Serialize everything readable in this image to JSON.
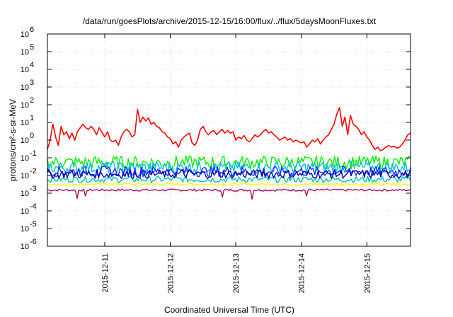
{
  "chart_data": {
    "type": "line",
    "title": "/data/run/goesPlots/archive/2015-12-15/16:00/flux/../flux/5daysMoonFluxes.txt",
    "xlabel": "Coordinated Universal Time (UTC)",
    "ylabel": "protons/cm²-s-sr-MeV",
    "y_scale": "log",
    "ylim": [
      1e-06,
      1000000.0
    ],
    "x_range": [
      "2015-12-10T03:00",
      "2015-12-15T16:00"
    ],
    "grid": true,
    "y_ticks": [
      {
        "value": 1e-06,
        "base": "10",
        "exp": "-6"
      },
      {
        "value": 1e-05,
        "base": "10",
        "exp": "-5"
      },
      {
        "value": 0.0001,
        "base": "10",
        "exp": "-4"
      },
      {
        "value": 0.001,
        "base": "10",
        "exp": "-3"
      },
      {
        "value": 0.01,
        "base": "10",
        "exp": "-2"
      },
      {
        "value": 0.1,
        "base": "10",
        "exp": "-1"
      },
      {
        "value": 1,
        "base": "10",
        "exp": "0"
      },
      {
        "value": 10,
        "base": "10",
        "exp": "1"
      },
      {
        "value": 100,
        "base": "10",
        "exp": "2"
      },
      {
        "value": 1000,
        "base": "10",
        "exp": "3"
      },
      {
        "value": 10000,
        "base": "10",
        "exp": "4"
      },
      {
        "value": 100000,
        "base": "10",
        "exp": "5"
      },
      {
        "value": 1000000,
        "base": "10",
        "exp": "6"
      }
    ],
    "x_ticks": [
      {
        "value": "2015-12-11",
        "label": "2015-12-11"
      },
      {
        "value": "2015-12-12",
        "label": "2015-12-12"
      },
      {
        "value": "2015-12-13",
        "label": "2015-12-13"
      },
      {
        "value": "2015-12-14",
        "label": "2015-12-14"
      },
      {
        "value": "2015-12-15",
        "label": "2015-12-15"
      }
    ],
    "series": [
      {
        "color": "#ff0000",
        "values": [
          [
            "2015-12-10T03:00",
            0.3
          ],
          [
            "2015-12-10T04:00",
            1.0
          ],
          [
            "2015-12-10T05:00",
            8.0
          ],
          [
            "2015-12-10T06:00",
            1.5
          ],
          [
            "2015-12-10T07:00",
            0.5
          ],
          [
            "2015-12-10T08:00",
            6.0
          ],
          [
            "2015-12-10T09:00",
            2.0
          ],
          [
            "2015-12-10T10:00",
            3.0
          ],
          [
            "2015-12-10T11:00",
            1.2
          ],
          [
            "2015-12-10T12:00",
            2.5
          ],
          [
            "2015-12-10T13:00",
            1.0
          ],
          [
            "2015-12-10T14:00",
            3.0
          ],
          [
            "2015-12-10T15:00",
            5.0
          ],
          [
            "2015-12-10T16:00",
            8.0
          ],
          [
            "2015-12-10T17:00",
            5.0
          ],
          [
            "2015-12-10T18:00",
            4.0
          ],
          [
            "2015-12-10T19:00",
            6.0
          ],
          [
            "2015-12-10T20:00",
            4.0
          ],
          [
            "2015-12-10T21:00",
            2.0
          ],
          [
            "2015-12-10T22:00",
            5.0
          ],
          [
            "2015-12-11T00:00",
            1.5
          ],
          [
            "2015-12-11T01:00",
            3.0
          ],
          [
            "2015-12-11T02:00",
            1.0
          ],
          [
            "2015-12-11T03:00",
            0.8
          ],
          [
            "2015-12-11T04:00",
            1.0
          ],
          [
            "2015-12-11T05:00",
            0.5
          ],
          [
            "2015-12-11T06:00",
            1.5
          ],
          [
            "2015-12-11T07:00",
            3.0
          ],
          [
            "2015-12-11T08:00",
            4.0
          ],
          [
            "2015-12-11T09:00",
            3.0
          ],
          [
            "2015-12-11T10:00",
            1.5
          ],
          [
            "2015-12-11T11:00",
            2.0
          ],
          [
            "2015-12-11T12:00",
            55
          ],
          [
            "2015-12-11T13:00",
            10
          ],
          [
            "2015-12-11T14:00",
            20
          ],
          [
            "2015-12-11T15:00",
            12
          ],
          [
            "2015-12-11T16:00",
            18
          ],
          [
            "2015-12-11T17:00",
            8
          ],
          [
            "2015-12-11T18:00",
            10
          ],
          [
            "2015-12-11T19:00",
            6
          ],
          [
            "2015-12-11T20:00",
            5
          ],
          [
            "2015-12-11T21:00",
            3
          ],
          [
            "2015-12-11T22:00",
            2.5
          ],
          [
            "2015-12-11T23:00",
            1.5
          ],
          [
            "2015-12-12T00:00",
            1.2
          ],
          [
            "2015-12-12T01:00",
            0.6
          ],
          [
            "2015-12-12T02:00",
            0.8
          ],
          [
            "2015-12-12T03:00",
            0.4
          ],
          [
            "2015-12-12T04:00",
            1.0
          ],
          [
            "2015-12-12T05:00",
            1.5
          ],
          [
            "2015-12-12T06:00",
            2.0
          ],
          [
            "2015-12-12T07:00",
            2.5
          ],
          [
            "2015-12-12T08:00",
            0.7
          ],
          [
            "2015-12-12T09:00",
            0.5
          ],
          [
            "2015-12-12T10:00",
            1.0
          ],
          [
            "2015-12-12T11:00",
            4.0
          ],
          [
            "2015-12-12T12:00",
            6.0
          ],
          [
            "2015-12-12T13:00",
            3.0
          ],
          [
            "2015-12-12T14:00",
            2.0
          ],
          [
            "2015-12-12T15:00",
            3.0
          ],
          [
            "2015-12-12T16:00",
            3.5
          ],
          [
            "2015-12-12T17:00",
            2.0
          ],
          [
            "2015-12-12T18:00",
            3.0
          ],
          [
            "2015-12-12T19:00",
            4.0
          ],
          [
            "2015-12-12T20:00",
            2.5
          ],
          [
            "2015-12-12T21:00",
            3.5
          ],
          [
            "2015-12-12T22:00",
            2.5
          ],
          [
            "2015-12-12T23:00",
            3.0
          ],
          [
            "2015-12-13T00:00",
            1.0
          ],
          [
            "2015-12-13T01:00",
            1.5
          ],
          [
            "2015-12-13T02:00",
            1.2
          ],
          [
            "2015-12-13T03:00",
            1.8
          ],
          [
            "2015-12-13T04:00",
            1.0
          ],
          [
            "2015-12-13T05:00",
            0.8
          ],
          [
            "2015-12-13T06:00",
            1.2
          ],
          [
            "2015-12-13T07:00",
            2.0
          ],
          [
            "2015-12-13T08:00",
            1.5
          ],
          [
            "2015-12-13T09:00",
            2.0
          ],
          [
            "2015-12-13T10:00",
            3.0
          ],
          [
            "2015-12-13T11:00",
            4.0
          ],
          [
            "2015-12-13T12:00",
            2.5
          ],
          [
            "2015-12-13T13:00",
            3.0
          ],
          [
            "2015-12-13T14:00",
            2.0
          ],
          [
            "2015-12-13T15:00",
            1.5
          ],
          [
            "2015-12-13T16:00",
            1.0
          ],
          [
            "2015-12-13T17:00",
            1.2
          ],
          [
            "2015-12-13T18:00",
            1.5
          ],
          [
            "2015-12-13T19:00",
            1.0
          ],
          [
            "2015-12-13T20:00",
            1.2
          ],
          [
            "2015-12-13T21:00",
            0.8
          ],
          [
            "2015-12-13T22:00",
            1.0
          ],
          [
            "2015-12-14T00:00",
            0.7
          ],
          [
            "2015-12-14T01:00",
            0.8
          ],
          [
            "2015-12-14T02:00",
            0.4
          ],
          [
            "2015-12-14T03:00",
            0.6
          ],
          [
            "2015-12-14T04:00",
            1.0
          ],
          [
            "2015-12-14T05:00",
            0.8
          ],
          [
            "2015-12-14T06:00",
            1.2
          ],
          [
            "2015-12-14T07:00",
            0.6
          ],
          [
            "2015-12-14T08:00",
            1.0
          ],
          [
            "2015-12-14T09:00",
            1.5
          ],
          [
            "2015-12-14T10:00",
            2.0
          ],
          [
            "2015-12-14T11:00",
            4.0
          ],
          [
            "2015-12-14T12:00",
            8.0
          ],
          [
            "2015-12-14T13:00",
            30
          ],
          [
            "2015-12-14T14:00",
            70
          ],
          [
            "2015-12-14T15:00",
            6
          ],
          [
            "2015-12-14T16:00",
            20
          ],
          [
            "2015-12-14T17:00",
            2
          ],
          [
            "2015-12-14T18:00",
            25
          ],
          [
            "2015-12-14T19:00",
            8
          ],
          [
            "2015-12-14T20:00",
            6
          ],
          [
            "2015-12-14T21:00",
            4
          ],
          [
            "2015-12-14T22:00",
            2
          ],
          [
            "2015-12-14T23:00",
            3
          ],
          [
            "2015-12-15T00:00",
            1.5
          ],
          [
            "2015-12-15T01:00",
            1.0
          ],
          [
            "2015-12-15T02:00",
            0.5
          ],
          [
            "2015-12-15T03:00",
            0.3
          ],
          [
            "2015-12-15T04:00",
            0.4
          ],
          [
            "2015-12-15T05:00",
            0.25
          ],
          [
            "2015-12-15T06:00",
            0.3
          ],
          [
            "2015-12-15T07:00",
            0.4
          ],
          [
            "2015-12-15T08:00",
            0.5
          ],
          [
            "2015-12-15T09:00",
            0.4
          ],
          [
            "2015-12-15T10:00",
            0.45
          ],
          [
            "2015-12-15T11:00",
            0.35
          ],
          [
            "2015-12-15T12:00",
            0.4
          ],
          [
            "2015-12-15T13:00",
            0.6
          ],
          [
            "2015-12-15T14:00",
            1.0
          ],
          [
            "2015-12-15T15:00",
            2.0
          ],
          [
            "2015-12-15T16:00",
            2.5
          ]
        ]
      },
      {
        "color": "#00ee00",
        "level": 0.055,
        "jitter": 0.75
      },
      {
        "color": "#00b8ff",
        "level": 0.028,
        "jitter": 0.7
      },
      {
        "color": "#1030ff",
        "level": 0.017,
        "jitter": 0.6
      },
      {
        "color": "#0000b0",
        "level": 0.012,
        "jitter": 0.5
      },
      {
        "color": "#00c0b0",
        "level": 0.006,
        "jitter": 0.35
      },
      {
        "color": "#ffff00",
        "level": 0.0032,
        "jitter": 0.12
      },
      {
        "color": "#a01060",
        "level": 0.0015,
        "jitter": 0.12,
        "dips": [
          [
            "2015-12-10T14:00",
            0.0005
          ],
          [
            "2015-12-10T17:00",
            0.0007
          ],
          [
            "2015-12-12T19:00",
            0.0006
          ],
          [
            "2015-12-13T06:00",
            0.00045
          ],
          [
            "2015-12-14T02:00",
            0.0007
          ]
        ]
      }
    ]
  }
}
